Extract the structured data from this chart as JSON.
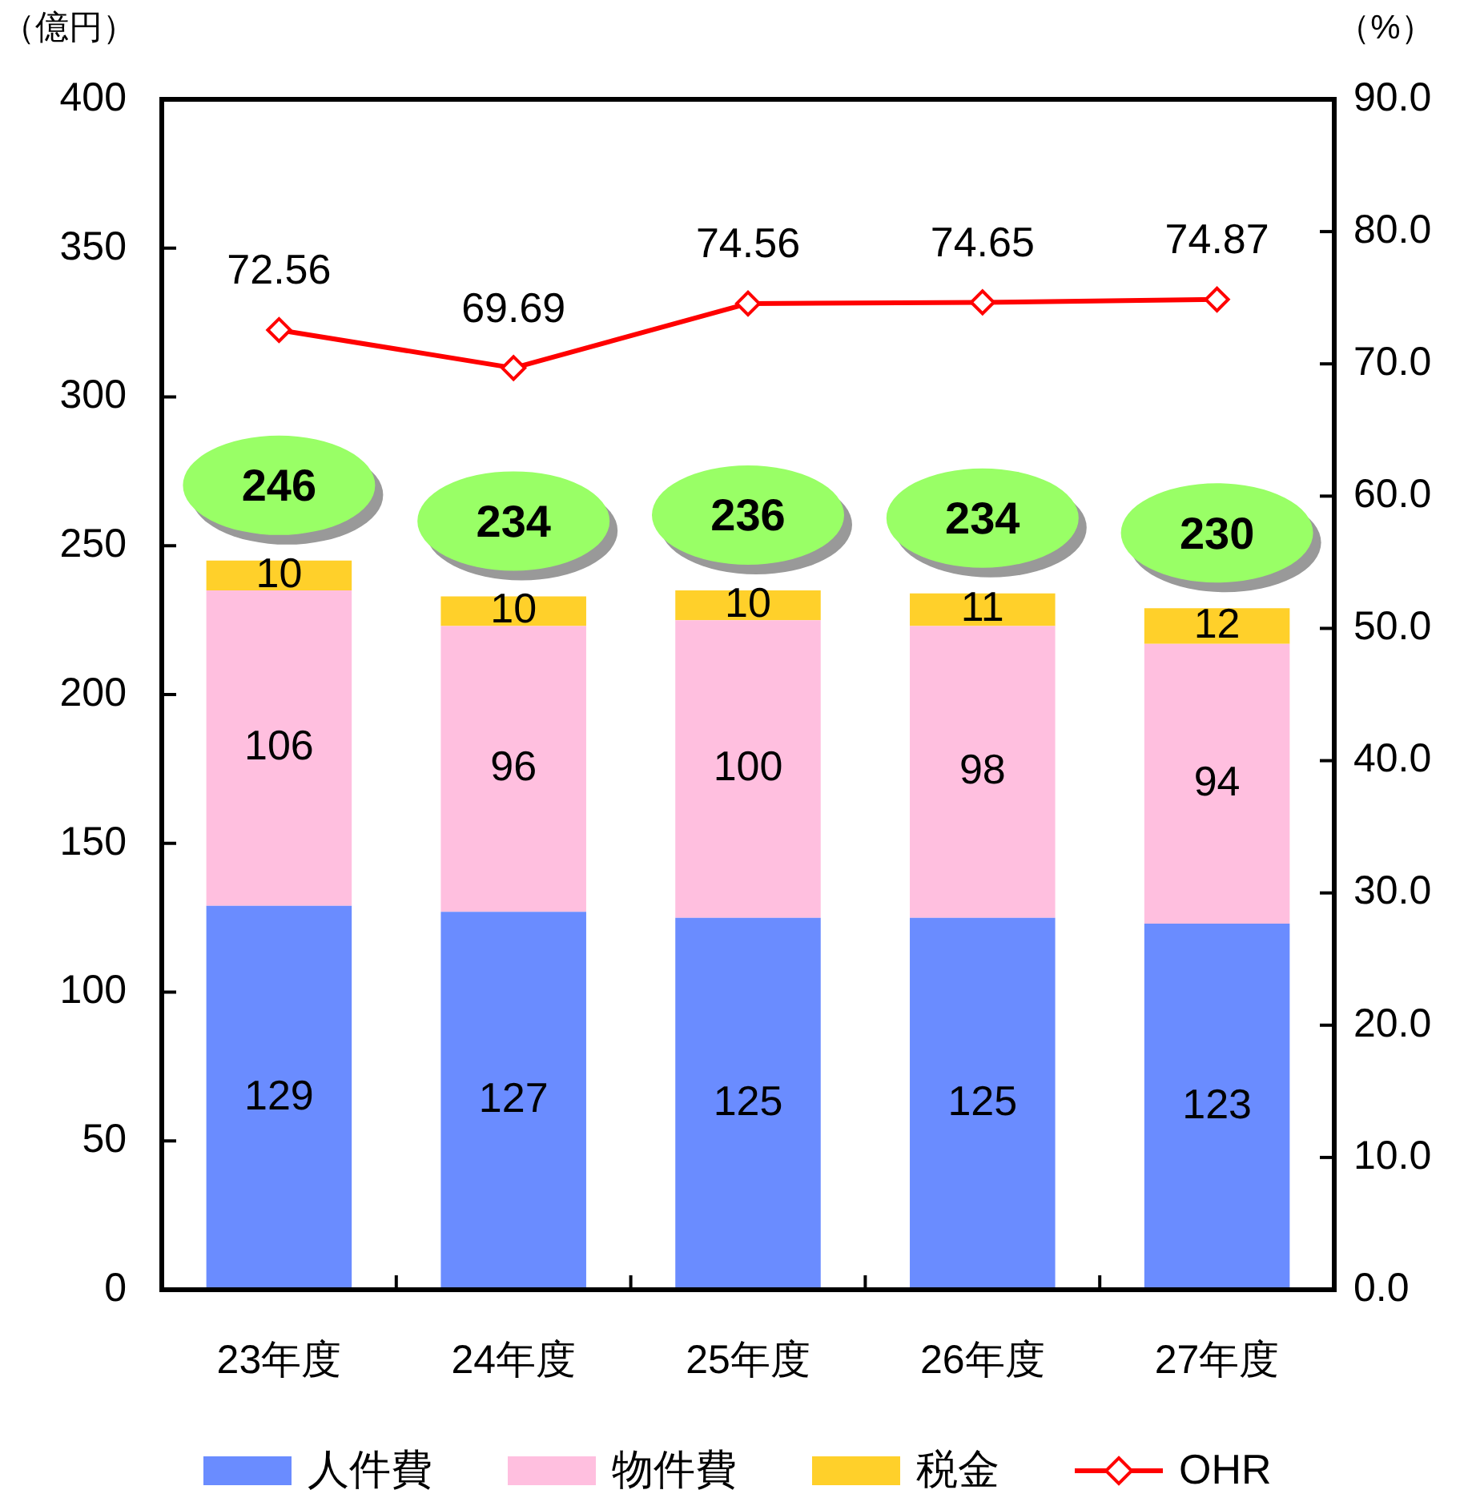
{
  "chart_data": {
    "type": "bar",
    "stacked": true,
    "ylabel": "（億円）",
    "y2label": "（%）",
    "categories": [
      "23年度",
      "24年度",
      "25年度",
      "26年度",
      "27年度"
    ],
    "series": [
      {
        "name": "人件費",
        "color": "#6a8cff",
        "values": [
          129,
          127,
          125,
          125,
          123
        ]
      },
      {
        "name": "物件費",
        "color": "#ffbfdf",
        "values": [
          106,
          96,
          100,
          98,
          94
        ]
      },
      {
        "name": "税金",
        "color": "#ffd02a",
        "values": [
          10,
          10,
          10,
          11,
          12
        ]
      },
      {
        "name": "OHR",
        "type": "line",
        "axis": "y2",
        "color": "#ff0000",
        "marker": "diamond",
        "values": [
          72.56,
          69.69,
          74.56,
          74.65,
          74.87
        ]
      }
    ],
    "ylim": [
      0,
      400
    ],
    "yticks": [
      0,
      50,
      100,
      150,
      200,
      250,
      300,
      350,
      400
    ],
    "y2lim": [
      0,
      90
    ],
    "y2ticks": [
      {
        "value": 0,
        "label": "0.0"
      },
      {
        "value": 10,
        "label": "10.0"
      },
      {
        "value": 20,
        "label": "20.0"
      },
      {
        "value": 30,
        "label": "30.0"
      },
      {
        "value": 40,
        "label": "40.0"
      },
      {
        "value": 50,
        "label": "50.0"
      },
      {
        "value": 60,
        "label": "60.0"
      },
      {
        "value": 70,
        "label": "70.0"
      },
      {
        "value": 80,
        "label": "80.0"
      },
      {
        "value": 90,
        "label": "90.0"
      }
    ],
    "data_labels": true,
    "totals": [
      "246",
      "234",
      "236",
      "234",
      "230"
    ],
    "legend": "bottom"
  }
}
